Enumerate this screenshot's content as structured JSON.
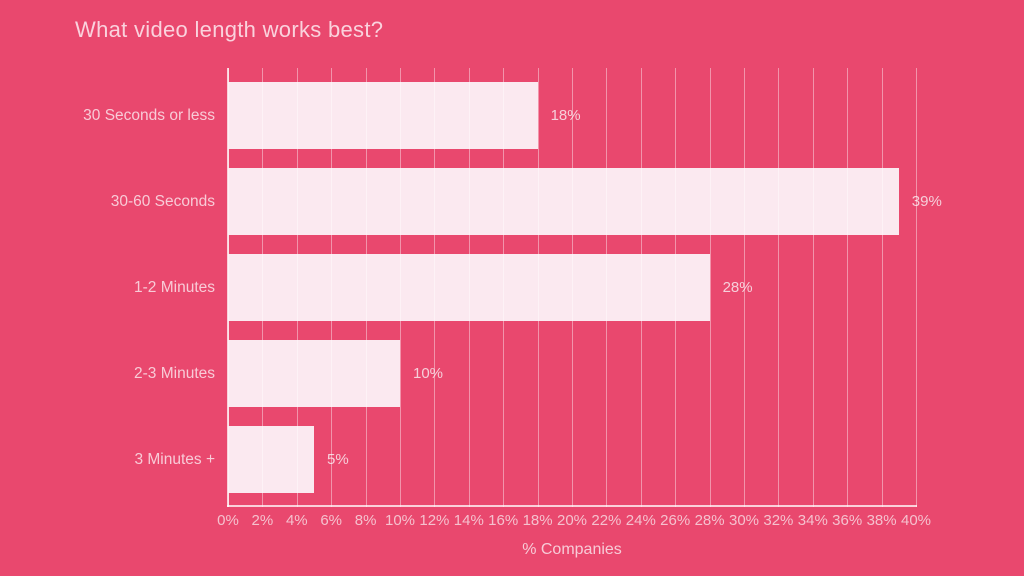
{
  "chart_data": {
    "type": "bar",
    "orientation": "horizontal",
    "title": "What video length works best?",
    "categories": [
      "30 Seconds or less",
      "30-60 Seconds",
      "1-2 Minutes",
      "2-3 Minutes",
      "3 Minutes +"
    ],
    "values": [
      18,
      39,
      28,
      10,
      5
    ],
    "value_labels": [
      "18%",
      "39%",
      "28%",
      "10%",
      "5%"
    ],
    "xlabel": "% Companies",
    "ylabel": "",
    "xlim": [
      0,
      40
    ],
    "x_ticks": [
      0,
      2,
      4,
      6,
      8,
      10,
      12,
      14,
      16,
      18,
      20,
      22,
      24,
      26,
      28,
      30,
      32,
      34,
      36,
      38,
      40
    ],
    "x_tick_labels": [
      "0%",
      "2%",
      "4%",
      "6%",
      "8%",
      "10%",
      "12%",
      "14%",
      "16%",
      "18%",
      "20%",
      "22%",
      "24%",
      "26%",
      "28%",
      "30%",
      "32%",
      "34%",
      "36%",
      "38%",
      "40%"
    ],
    "grid": "vertical-gridlines-on",
    "legend": "none"
  },
  "colors": {
    "background": "#E9486E",
    "bar_fill": "#FBE9F0",
    "title_text": "#FAD2DD",
    "label_text": "#F8CBD7",
    "tick_text": "#F5C1CE",
    "gridline": "rgba(255,255,255,0.42)",
    "axis_line": "rgba(255,255,255,0.75)"
  }
}
